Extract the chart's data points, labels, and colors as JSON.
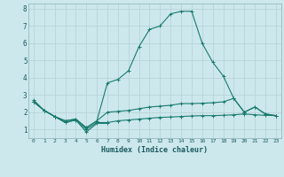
{
  "xlabel": "Humidex (Indice chaleur)",
  "x_values": [
    0,
    1,
    2,
    3,
    4,
    5,
    6,
    7,
    8,
    9,
    10,
    11,
    12,
    13,
    14,
    15,
    16,
    17,
    18,
    19,
    20,
    21,
    22,
    23
  ],
  "line1_x": [
    0,
    1,
    2,
    3,
    4,
    5,
    6,
    7
  ],
  "line1_y": [
    2.7,
    2.1,
    1.75,
    1.4,
    1.55,
    0.85,
    1.35,
    1.35
  ],
  "line2_y": [
    2.6,
    2.1,
    1.75,
    1.4,
    1.55,
    1.0,
    1.4,
    1.4,
    1.5,
    1.55,
    1.6,
    1.65,
    1.7,
    1.72,
    1.75,
    1.78,
    1.8,
    1.8,
    1.82,
    1.85,
    1.9,
    1.85,
    1.82,
    1.8
  ],
  "line3_y": [
    2.6,
    2.1,
    1.75,
    1.5,
    1.6,
    1.1,
    1.5,
    2.0,
    2.05,
    2.1,
    2.2,
    2.3,
    2.35,
    2.4,
    2.5,
    2.5,
    2.52,
    2.55,
    2.6,
    2.8,
    2.0,
    2.3,
    1.9,
    1.8
  ],
  "line4_y": [
    2.6,
    2.1,
    1.75,
    1.5,
    1.6,
    1.1,
    1.5,
    3.7,
    3.9,
    4.4,
    5.8,
    6.8,
    7.0,
    7.7,
    7.85,
    7.85,
    6.0,
    4.9,
    4.1,
    2.8,
    2.0,
    2.3,
    1.9,
    1.8
  ],
  "line_color": "#1a7a6e",
  "bg_color": "#cce8ec",
  "grid_color": "#b8d4d8",
  "ylim": [
    0.5,
    8.3
  ],
  "xlim": [
    -0.5,
    23.5
  ],
  "yticks": [
    1,
    2,
    3,
    4,
    5,
    6,
    7,
    8
  ],
  "xticks": [
    0,
    1,
    2,
    3,
    4,
    5,
    6,
    7,
    8,
    9,
    10,
    11,
    12,
    13,
    14,
    15,
    16,
    17,
    18,
    19,
    20,
    21,
    22,
    23
  ]
}
